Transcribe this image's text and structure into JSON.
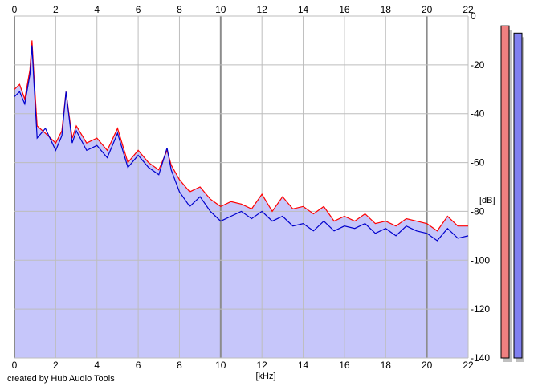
{
  "credit": "created by Hub Audio Tools",
  "colors": {
    "background": "#ffffff",
    "fill": "#c6c6fa",
    "grid": "#bdbdbd",
    "grid_major": "#8c8c8c",
    "left_channel": "#ff0000",
    "right_channel": "#0000cc",
    "left_meter": "#f08080",
    "right_meter": "#8080f0",
    "meter_shadow": "#c0c0c0"
  },
  "chart_data": {
    "type": "line",
    "xlabel": "[kHz]",
    "ylabel": "[dB]",
    "xlim": [
      0,
      22
    ],
    "ylim": [
      -140,
      0
    ],
    "x_ticks": [
      "0",
      "2",
      "4",
      "6",
      "8",
      "10",
      "12",
      "14",
      "16",
      "18",
      "20",
      "22"
    ],
    "y_ticks": [
      "0",
      "-20",
      "-40",
      "-60",
      "-80",
      "-100",
      "-120",
      "-140"
    ],
    "grid": true,
    "series": [
      {
        "color": "#ff0000",
        "x": [
          0,
          0.25,
          0.5,
          0.75,
          0.85,
          0.95,
          1.1,
          1.5,
          2,
          2.3,
          2.5,
          2.8,
          3,
          3.5,
          4,
          4.5,
          5,
          5.5,
          6,
          6.5,
          7,
          7.4,
          7.6,
          8,
          8.5,
          9,
          9.5,
          10,
          10.5,
          11,
          11.5,
          12,
          12.5,
          13,
          13.5,
          14,
          14.5,
          15,
          15.5,
          16,
          16.5,
          17,
          17.5,
          18,
          18.5,
          19,
          19.5,
          20,
          20.5,
          21,
          21.5,
          22
        ],
        "values": [
          -30,
          -28,
          -34,
          -22,
          -10,
          -25,
          -45,
          -48,
          -52,
          -47,
          -31,
          -50,
          -45,
          -52,
          -50,
          -55,
          -46,
          -60,
          -55,
          -60,
          -63,
          -55,
          -61,
          -67,
          -72,
          -70,
          -75,
          -78,
          -76,
          -77,
          -79,
          -73,
          -80,
          -74,
          -79,
          -78,
          -81,
          -78,
          -84,
          -82,
          -84,
          -81,
          -85,
          -84,
          -86,
          -83,
          -84,
          -85,
          -88,
          -82,
          -86,
          -86
        ]
      },
      {
        "color": "#0000cc",
        "x": [
          0,
          0.25,
          0.5,
          0.75,
          0.85,
          0.95,
          1.1,
          1.5,
          2,
          2.3,
          2.5,
          2.8,
          3,
          3.5,
          4,
          4.5,
          5,
          5.5,
          6,
          6.5,
          7,
          7.4,
          7.6,
          8,
          8.5,
          9,
          9.5,
          10,
          10.5,
          11,
          11.5,
          12,
          12.5,
          13,
          13.5,
          14,
          14.5,
          15,
          15.5,
          16,
          16.5,
          17,
          17.5,
          18,
          18.5,
          19,
          19.5,
          20,
          20.5,
          21,
          21.5,
          22
        ],
        "values": [
          -33,
          -31,
          -36,
          -24,
          -12,
          -28,
          -50,
          -46,
          -55,
          -49,
          -31,
          -52,
          -47,
          -55,
          -53,
          -58,
          -48,
          -62,
          -57,
          -62,
          -65,
          -54,
          -63,
          -72,
          -78,
          -74,
          -80,
          -84,
          -82,
          -80,
          -83,
          -80,
          -84,
          -82,
          -86,
          -85,
          -88,
          -84,
          -88,
          -86,
          -87,
          -85,
          -89,
          -87,
          -90,
          -86,
          -88,
          -89,
          -92,
          -87,
          -91,
          -90
        ]
      }
    ],
    "level_meters": [
      {
        "color": "#f08080",
        "peak_db": -4
      },
      {
        "color": "#8080f0",
        "peak_db": -7
      }
    ]
  }
}
